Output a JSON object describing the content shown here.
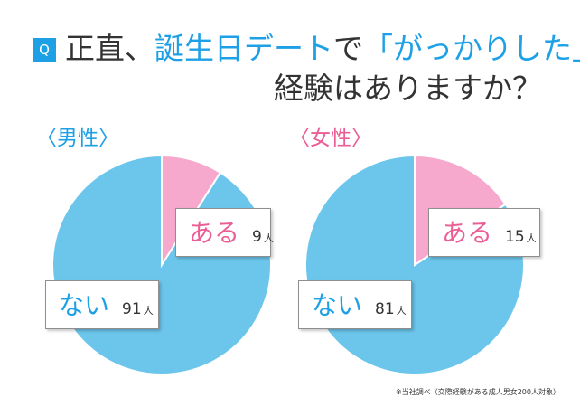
{
  "title": {
    "badge": "Q",
    "line1_prefix": "正直、",
    "line1_highlight": "誕生日デート",
    "line1_mid": "で",
    "line1_highlight2": "「がっかりした」",
    "line2": "経験はありますか？"
  },
  "colors": {
    "accent": "#1ea0e6",
    "pink": "#f6a9cc",
    "blue": "#6cc6ec",
    "pink_text": "#ea5e95"
  },
  "unit": "人",
  "footnote": "※当社調べ（交際経験がある成人男女200人対象）",
  "chart_data": [
    {
      "type": "pie",
      "title": "〈男性〉",
      "slices": [
        {
          "label": "ある",
          "value": 9,
          "color": "#f6a9cc"
        },
        {
          "label": "ない",
          "value": 91,
          "color": "#6cc6ec"
        }
      ]
    },
    {
      "type": "pie",
      "title": "〈女性〉",
      "slices": [
        {
          "label": "ある",
          "value": 15,
          "color": "#f6a9cc"
        },
        {
          "label": "ない",
          "value": 81,
          "color": "#6cc6ec"
        }
      ]
    }
  ]
}
